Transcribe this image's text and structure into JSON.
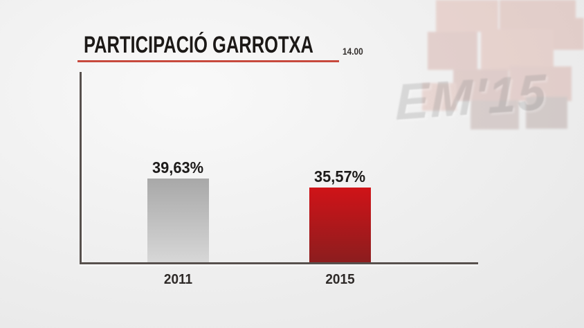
{
  "header": {
    "title": "PARTICIPACIÓ GARROTXA",
    "clock": "14.00"
  },
  "watermark": {
    "event_label": "EM'15"
  },
  "colors": {
    "title_underline": "#c7493d",
    "axis": "#57504d",
    "background": "#ececec",
    "bar_2011": "#a9a9a9",
    "bar_2015": "#c01317"
  },
  "chart_data": {
    "type": "bar",
    "title": "PARTICIPACIÓ GARROTXA",
    "categories": [
      "2011",
      "2015"
    ],
    "values": [
      39.63,
      35.57
    ],
    "value_labels": [
      "39,63%",
      "35,57%"
    ],
    "xlabel": "",
    "ylabel": "",
    "ylim": [
      0,
      40
    ],
    "grid": false,
    "legend": false,
    "bar_gradients": [
      [
        "#a8a8a8",
        "#d7d7d7"
      ],
      [
        "#d01318",
        "#8c1d1e"
      ]
    ]
  }
}
